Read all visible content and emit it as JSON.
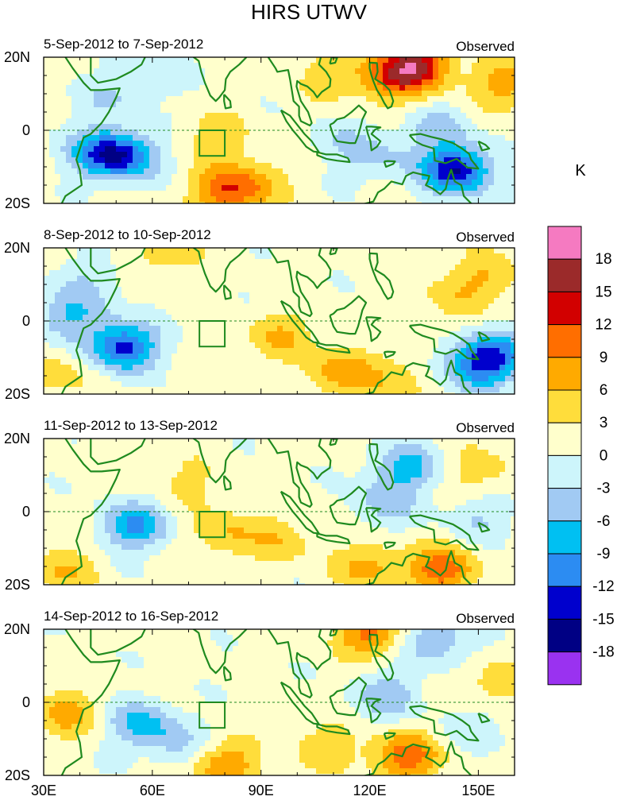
{
  "chart_data": {
    "type": "heatmap",
    "title": "HIRS UTWV",
    "x_ticks": [
      {
        "label": "30E",
        "lon": 30
      },
      {
        "label": "60E",
        "lon": 60
      },
      {
        "label": "90E",
        "lon": 90
      },
      {
        "label": "120E",
        "lon": 120
      },
      {
        "label": "150E",
        "lon": 150
      }
    ],
    "y_ticks": [
      {
        "label": "20N",
        "lat": 20
      },
      {
        "label": "0",
        "lat": 0
      },
      {
        "label": "20S",
        "lat": -20
      }
    ],
    "xlim": [
      30,
      160
    ],
    "ylim": [
      -20,
      20
    ],
    "colorbar": {
      "unit": "K",
      "levels": [
        "18",
        "15",
        "12",
        "9",
        "6",
        "3",
        "0",
        "-3",
        "-6",
        "-9",
        "-12",
        "-15",
        "-18"
      ],
      "colors": [
        "#f57ac1",
        "#9b2a2a",
        "#d20000",
        "#ff6e00",
        "#ffaa00",
        "#ffdd3b",
        "#ffffcc",
        "#cdf5fb",
        "#a1caf3",
        "#00c0f2",
        "#2c8cf2",
        "#0000cd",
        "#000084",
        "#9a32f0"
      ]
    },
    "panels": [
      {
        "period": "5-Sep-2012 to 7-Sep-2012",
        "label": "Observed",
        "anomalies": [
          {
            "lon": 133,
            "lat": 18,
            "value": 13
          },
          {
            "lon": 126,
            "lat": 14,
            "value": 8
          },
          {
            "lon": 158,
            "lat": 13,
            "value": 7
          },
          {
            "lon": 110,
            "lat": 15,
            "value": 4
          },
          {
            "lon": 80,
            "lat": -17,
            "value": 9
          },
          {
            "lon": 88,
            "lat": -14,
            "value": 5
          },
          {
            "lon": 78,
            "lat": -2,
            "value": 4
          },
          {
            "lon": 52,
            "lat": -7,
            "value": -13
          },
          {
            "lon": 44,
            "lat": -6,
            "value": -7
          },
          {
            "lon": 58,
            "lat": 15,
            "value": -4
          },
          {
            "lon": 47,
            "lat": 8,
            "value": -3
          },
          {
            "lon": 144,
            "lat": -11,
            "value": -16
          },
          {
            "lon": 138,
            "lat": 0,
            "value": -5
          },
          {
            "lon": 122,
            "lat": -8,
            "value": -4
          },
          {
            "lon": 112,
            "lat": -3,
            "value": -3
          }
        ]
      },
      {
        "period": "8-Sep-2012 to 10-Sep-2012",
        "label": "Observed",
        "anomalies": [
          {
            "lon": 52,
            "lat": -7,
            "value": -14
          },
          {
            "lon": 38,
            "lat": 2,
            "value": -7
          },
          {
            "lon": 44,
            "lat": 12,
            "value": -3
          },
          {
            "lon": 150,
            "lat": -12,
            "value": -13
          },
          {
            "lon": 157,
            "lat": -8,
            "value": -6
          },
          {
            "lon": 112,
            "lat": -14,
            "value": 7
          },
          {
            "lon": 95,
            "lat": -4,
            "value": 5
          },
          {
            "lon": 128,
            "lat": -16,
            "value": 4
          },
          {
            "lon": 152,
            "lat": 12,
            "value": 5
          },
          {
            "lon": 142,
            "lat": 6,
            "value": 3
          },
          {
            "lon": 64,
            "lat": 18,
            "value": 4
          },
          {
            "lon": 33,
            "lat": -15,
            "value": 4
          }
        ]
      },
      {
        "period": "11-Sep-2012 to 13-Sep-2012",
        "label": "Observed",
        "anomalies": [
          {
            "lon": 55,
            "lat": -4,
            "value": -10
          },
          {
            "lon": 130,
            "lat": 12,
            "value": -8
          },
          {
            "lon": 124,
            "lat": 2,
            "value": -5
          },
          {
            "lon": 150,
            "lat": -2,
            "value": -4
          },
          {
            "lon": 140,
            "lat": -16,
            "value": 10
          },
          {
            "lon": 120,
            "lat": -15,
            "value": 6
          },
          {
            "lon": 96,
            "lat": -8,
            "value": 4
          },
          {
            "lon": 35,
            "lat": -16,
            "value": 5
          },
          {
            "lon": 80,
            "lat": -6,
            "value": 5
          },
          {
            "lon": 150,
            "lat": 11,
            "value": 4
          },
          {
            "lon": 70,
            "lat": 8,
            "value": 3
          }
        ]
      },
      {
        "period": "14-Sep-2012 to 16-Sep-2012",
        "label": "Observed",
        "anomalies": [
          {
            "lon": 130,
            "lat": -15,
            "value": 10
          },
          {
            "lon": 80,
            "lat": -17,
            "value": 8
          },
          {
            "lon": 108,
            "lat": -12,
            "value": 4
          },
          {
            "lon": 36,
            "lat": -3,
            "value": 6
          },
          {
            "lon": 120,
            "lat": 19,
            "value": 9
          },
          {
            "lon": 154,
            "lat": 5,
            "value": 4
          },
          {
            "lon": 57,
            "lat": -6,
            "value": -8
          },
          {
            "lon": 68,
            "lat": -12,
            "value": -4
          },
          {
            "lon": 125,
            "lat": 2,
            "value": -6
          },
          {
            "lon": 138,
            "lat": 17,
            "value": -7
          },
          {
            "lon": 150,
            "lat": -7,
            "value": -3
          }
        ]
      }
    ],
    "boxes": [
      {
        "lon_min": 73,
        "lon_max": 80,
        "lat_min": -7,
        "lat_max": 0
      }
    ]
  }
}
